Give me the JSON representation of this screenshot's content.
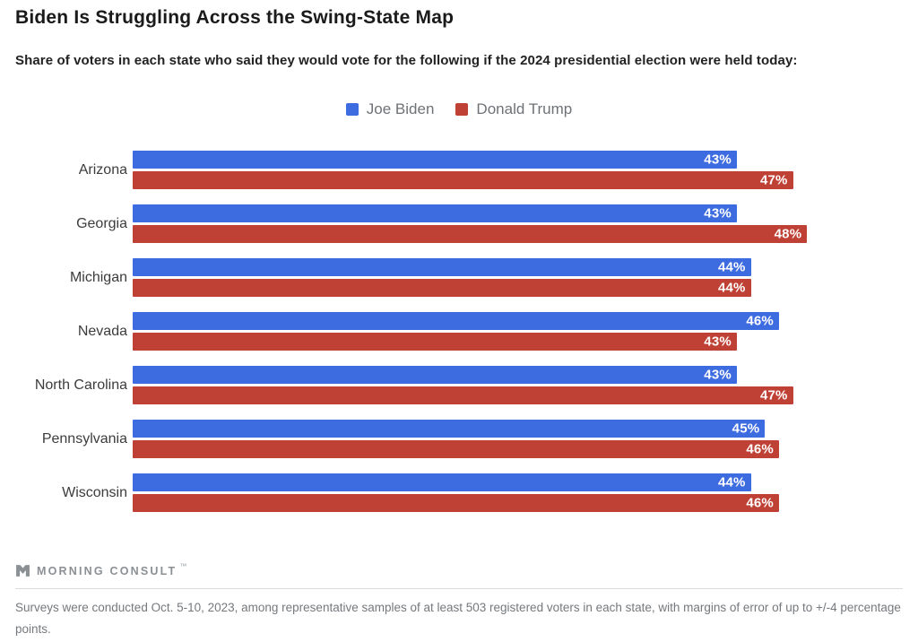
{
  "header": {
    "title": "Biden Is Struggling Across the Swing-State Map",
    "subtitle": "Share of voters in each state who said they would vote for the following if the 2024 presidential election were held today:"
  },
  "legend": [
    {
      "name": "legend-item-biden",
      "label": "Joe Biden",
      "color": "#3d6be0"
    },
    {
      "name": "legend-item-trump",
      "label": "Donald Trump",
      "color": "#bf4034"
    }
  ],
  "chart_data": {
    "type": "bar",
    "orientation": "horizontal",
    "title": "Biden Is Struggling Across the Swing-State Map",
    "categories": [
      "Arizona",
      "Georgia",
      "Michigan",
      "Nevada",
      "North Carolina",
      "Pennsylvania",
      "Wisconsin"
    ],
    "series": [
      {
        "name": "Joe Biden",
        "color": "#3d6be0",
        "values": [
          43,
          43,
          44,
          46,
          43,
          45,
          44
        ]
      },
      {
        "name": "Donald Trump",
        "color": "#bf4034",
        "values": [
          47,
          48,
          44,
          43,
          47,
          46,
          46
        ]
      }
    ],
    "value_suffix": "%",
    "xlim": [
      0,
      55
    ],
    "grid": false,
    "value_labels": "inside-end",
    "legend_position": "top-center"
  },
  "footer": {
    "logo_text": "MORNING CONSULT",
    "logo_tm": "™",
    "note": "Surveys were conducted Oct. 5-10, 2023, among representative samples of at least 503 registered voters in each state, with margins of error of up to +/-4 percentage points."
  },
  "colors": {
    "biden_blue": "#3d6be0",
    "trump_red": "#bf4034",
    "title_text": "#1a1a1a",
    "legend_text": "#6e7276",
    "footnote_text": "#75797d",
    "logo_gray": "#8b9094"
  }
}
